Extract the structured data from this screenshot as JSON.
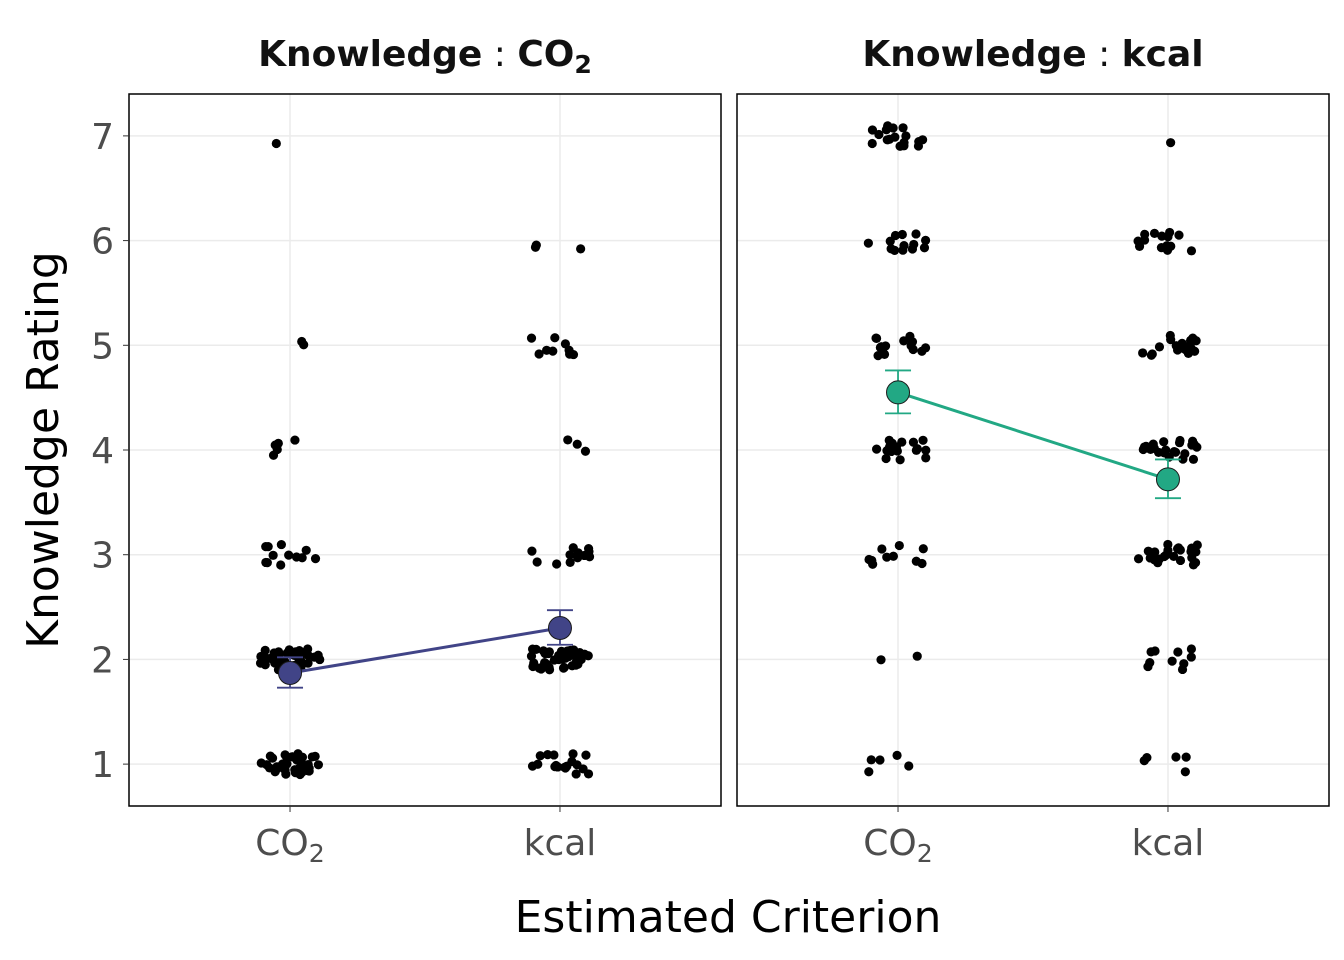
{
  "chart_data": {
    "type": "scatter",
    "xlabel": "Estimated Criterion",
    "ylabel": "Knowledge Rating",
    "categories": [
      "CO2",
      "kcal"
    ],
    "ylim": [
      0.6,
      7.4
    ],
    "yticks": [
      1,
      2,
      3,
      4,
      5,
      6,
      7
    ],
    "grid": true,
    "legend": "none",
    "panels": [
      {
        "facet_label": "Knowledge",
        "facet_value": "CO2",
        "color": "#414487",
        "mean": {
          "CO2": 1.87,
          "kcal": 2.3
        },
        "error": {
          "CO2": [
            1.73,
            2.02
          ],
          "kcal": [
            2.14,
            2.47
          ]
        },
        "counts": {
          "CO2": {
            "1": 40,
            "2": 36,
            "3": 12,
            "4": 5,
            "5": 2,
            "6": 0,
            "7": 1
          },
          "kcal": {
            "1": 18,
            "2": 45,
            "3": 12,
            "4": 3,
            "5": 9,
            "6": 3,
            "7": 0
          }
        }
      },
      {
        "facet_label": "Knowledge",
        "facet_value": "kcal",
        "color": "#22A884",
        "mean": {
          "CO2": 4.55,
          "kcal": 3.72
        },
        "error": {
          "CO2": [
            4.35,
            4.76
          ],
          "kcal": [
            3.54,
            3.91
          ]
        },
        "counts": {
          "CO2": {
            "1": 5,
            "2": 2,
            "3": 10,
            "4": 18,
            "5": 14,
            "6": 13,
            "7": 18
          },
          "kcal": {
            "1": 5,
            "2": 10,
            "3": 24,
            "4": 22,
            "5": 20,
            "6": 14,
            "7": 1
          }
        }
      }
    ]
  }
}
